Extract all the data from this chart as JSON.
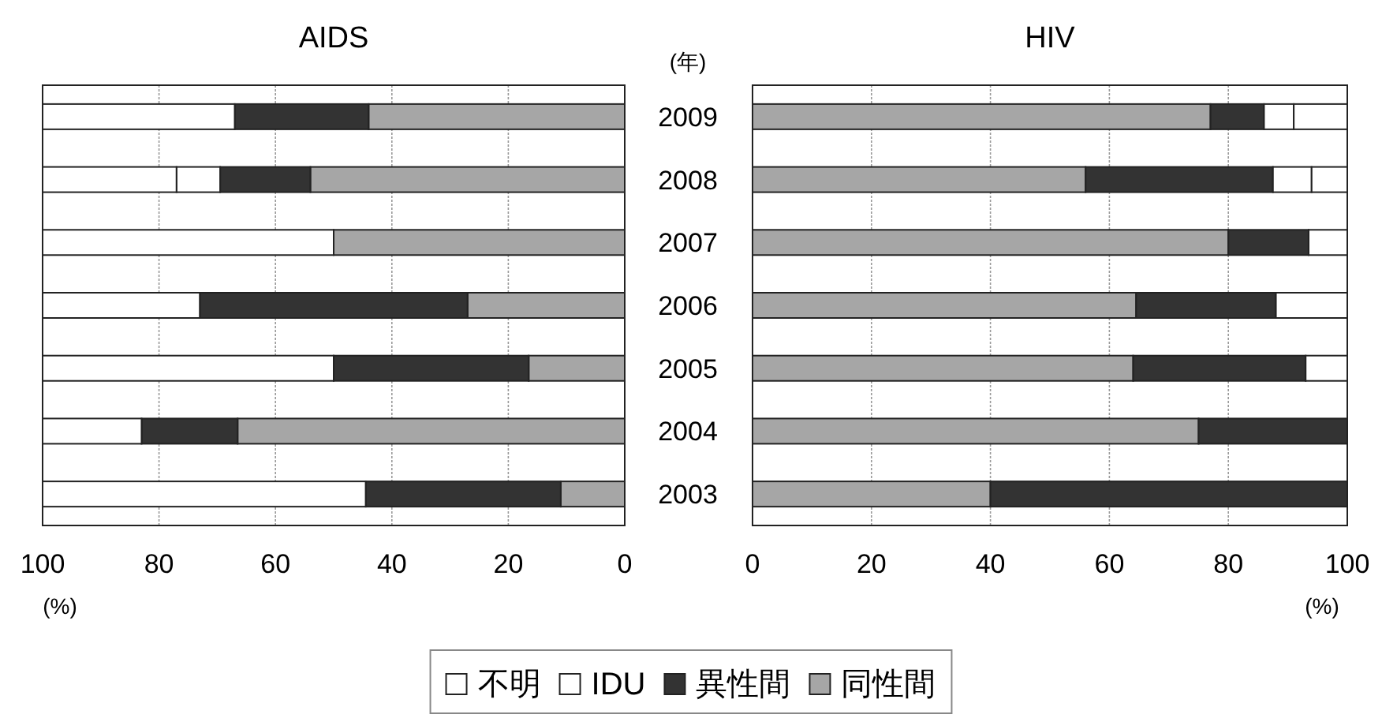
{
  "chart_data": [
    {
      "type": "bar",
      "orientation": "horizontal",
      "stacked": true,
      "title": "AIDS",
      "xlabel": "(%)",
      "ylabel": "(年)",
      "categories": [
        "2009",
        "2008",
        "2007",
        "2006",
        "2005",
        "2004",
        "2003"
      ],
      "xlim": [
        100,
        0
      ],
      "xticks": [
        100,
        80,
        60,
        40,
        20,
        0
      ],
      "grid": "x",
      "legend": "bottom",
      "series": [
        {
          "name": "同性間",
          "color": "#a6a6a6",
          "values": [
            44,
            54,
            50,
            27,
            16.5,
            66.5,
            11
          ]
        },
        {
          "name": "異性間",
          "color": "#333333",
          "values": [
            23,
            15.5,
            0,
            46,
            33.5,
            16.5,
            33.5
          ]
        },
        {
          "name": "IDU",
          "color": "#ffffff",
          "values": [
            0,
            7.5,
            0,
            0,
            0,
            0,
            0
          ]
        },
        {
          "name": "不明",
          "color": "#ffffff",
          "values": [
            33,
            23,
            50,
            27,
            50,
            17,
            55.5
          ]
        }
      ]
    },
    {
      "type": "bar",
      "orientation": "horizontal",
      "stacked": true,
      "title": "HIV",
      "xlabel": "(%)",
      "categories": [
        "2009",
        "2008",
        "2007",
        "2006",
        "2005",
        "2004",
        "2003"
      ],
      "xlim": [
        0,
        100
      ],
      "xticks": [
        0,
        20,
        40,
        60,
        80,
        100
      ],
      "grid": "x",
      "tick_labels": "x",
      "series": [
        {
          "color": "#a6a6a6",
          "values": [
            77,
            56,
            80,
            64.5,
            64,
            75,
            40
          ]
        },
        {
          "color": "#333333",
          "values": [
            9,
            31.5,
            13.5,
            23.5,
            29,
            25,
            60
          ]
        },
        {
          "color": "#ffffff",
          "values": [
            5,
            6.5,
            0,
            0,
            0,
            0,
            0
          ]
        },
        {
          "color": "#ffffff",
          "values": [
            9,
            6,
            6.5,
            12,
            7,
            0,
            0
          ]
        }
      ]
    }
  ]
}
